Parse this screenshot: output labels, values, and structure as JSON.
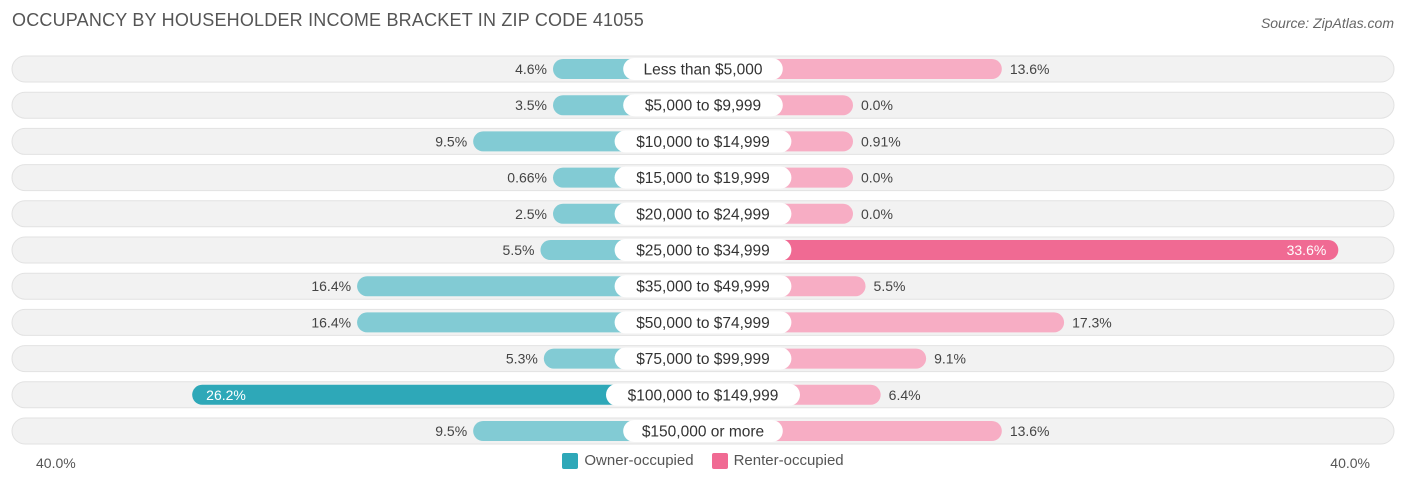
{
  "chart_data": {
    "type": "bar",
    "orientation": "horizontal-diverging",
    "title": "OCCUPANCY BY HOUSEHOLDER INCOME BRACKET IN ZIP CODE 41055",
    "source": "Source: ZipAtlas.com",
    "categories": [
      "Less than $5,000",
      "$5,000 to $9,999",
      "$10,000 to $14,999",
      "$15,000 to $19,999",
      "$20,000 to $24,999",
      "$25,000 to $34,999",
      "$35,000 to $49,999",
      "$50,000 to $74,999",
      "$75,000 to $99,999",
      "$100,000 to $149,999",
      "$150,000 or more"
    ],
    "series": [
      {
        "name": "Owner-occupied",
        "color": "#2ea8b8",
        "values": [
          4.6,
          3.5,
          9.5,
          0.66,
          2.5,
          5.5,
          16.4,
          16.4,
          5.3,
          26.2,
          9.5
        ],
        "labels": [
          "4.6%",
          "3.5%",
          "9.5%",
          "0.66%",
          "2.5%",
          "5.5%",
          "16.4%",
          "16.4%",
          "5.3%",
          "26.2%",
          "9.5%"
        ]
      },
      {
        "name": "Renter-occupied",
        "color": "#f06a93",
        "values": [
          13.6,
          0.0,
          0.91,
          0.0,
          0.0,
          33.6,
          5.5,
          17.3,
          9.1,
          6.4,
          13.6
        ],
        "labels": [
          "13.6%",
          "0.0%",
          "0.91%",
          "0.0%",
          "0.0%",
          "33.6%",
          "5.5%",
          "17.3%",
          "9.1%",
          "6.4%",
          "13.6%"
        ]
      }
    ],
    "axis": {
      "max": 40.0,
      "left_label": "40.0%",
      "right_label": "40.0%"
    },
    "legend": {
      "position": "bottom-center",
      "items": [
        "Owner-occupied",
        "Renter-occupied"
      ]
    }
  }
}
